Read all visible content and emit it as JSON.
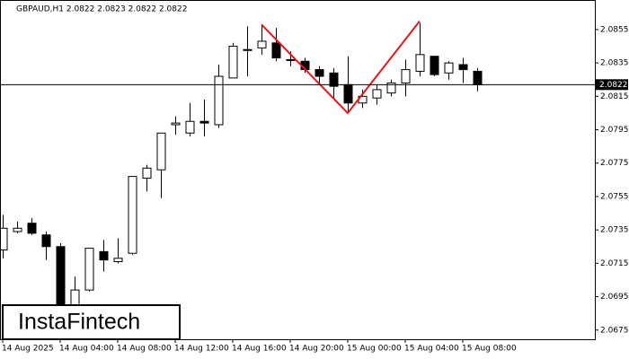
{
  "chart_data": {
    "type": "candlestick",
    "title": "GBPAUD,H1  2.0822 2.0823 2.0822 2.0822",
    "categories": [
      "14 Aug 2025",
      null,
      null,
      null,
      "14 Aug 04:00",
      null,
      null,
      null,
      "14 Aug 08:00",
      null,
      null,
      null,
      "14 Aug 12:00",
      null,
      null,
      null,
      "14 Aug 16:00",
      null,
      null,
      null,
      "14 Aug 20:00",
      null,
      null,
      null,
      "15 Aug 00:00",
      null,
      null,
      null,
      "15 Aug 04:00",
      null,
      null,
      null,
      "15 Aug 08:00",
      null
    ],
    "open": [
      2.0723,
      2.0734,
      2.0739,
      2.0732,
      2.0725,
      2.069,
      2.0699,
      2.0722,
      2.0716,
      2.0721,
      2.0766,
      2.0771,
      2.0798,
      2.0793,
      2.08,
      2.0798,
      2.0826,
      2.0843,
      2.0844,
      2.0847,
      2.0837,
      2.0836,
      2.0831,
      2.0829,
      2.0822,
      2.0811,
      2.0814,
      2.0817,
      2.0823,
      2.083,
      2.0839,
      2.0829,
      2.0834,
      2.083
    ],
    "high": [
      2.0744,
      2.074,
      2.0742,
      2.0734,
      2.0727,
      2.0707,
      2.0724,
      2.0729,
      2.073,
      2.0767,
      2.0774,
      2.0793,
      2.0803,
      2.0811,
      2.0813,
      2.0834,
      2.0847,
      2.0857,
      2.0858,
      2.0856,
      2.0842,
      2.0838,
      2.0833,
      2.0832,
      2.0839,
      2.0819,
      2.0822,
      2.0825,
      2.0837,
      2.0859,
      2.0839,
      2.0836,
      2.0838,
      2.0832
    ],
    "low": [
      2.0718,
      2.0733,
      2.0732,
      2.0717,
      2.0672,
      2.0685,
      2.0698,
      2.071,
      2.0715,
      2.072,
      2.0758,
      2.0754,
      2.0792,
      2.0791,
      2.0791,
      2.0796,
      2.0826,
      2.0827,
      2.084,
      2.0836,
      2.0833,
      2.0829,
      2.0823,
      2.0813,
      2.0806,
      2.0808,
      2.081,
      2.0815,
      2.0815,
      2.0827,
      2.0827,
      2.0825,
      2.0823,
      2.0818
    ],
    "close": [
      2.0736,
      2.0736,
      2.0733,
      2.0725,
      2.068,
      2.0699,
      2.0724,
      2.0717,
      2.0718,
      2.0767,
      2.0772,
      2.0793,
      2.0799,
      2.08,
      2.0799,
      2.0827,
      2.0845,
      2.0843,
      2.0848,
      2.0838,
      2.0837,
      2.0831,
      2.0827,
      2.0821,
      2.0811,
      2.0815,
      2.0819,
      2.0823,
      2.0831,
      2.084,
      2.0828,
      2.0835,
      2.0831,
      2.0822
    ],
    "ylim": [
      2.06695,
      2.08727
    ],
    "yticks": [
      2.0855,
      2.0835,
      2.0815,
      2.0795,
      2.0775,
      2.0755,
      2.0735,
      2.0715,
      2.0695,
      2.0675
    ],
    "current_price": 2.0822,
    "pattern": {
      "color": "#e8141c",
      "points": [
        {
          "x": 18,
          "value": 2.0858
        },
        {
          "x": 24,
          "value": 2.0805
        },
        {
          "x": 29,
          "value": 2.086
        }
      ]
    },
    "logo": "InstaFintech"
  }
}
